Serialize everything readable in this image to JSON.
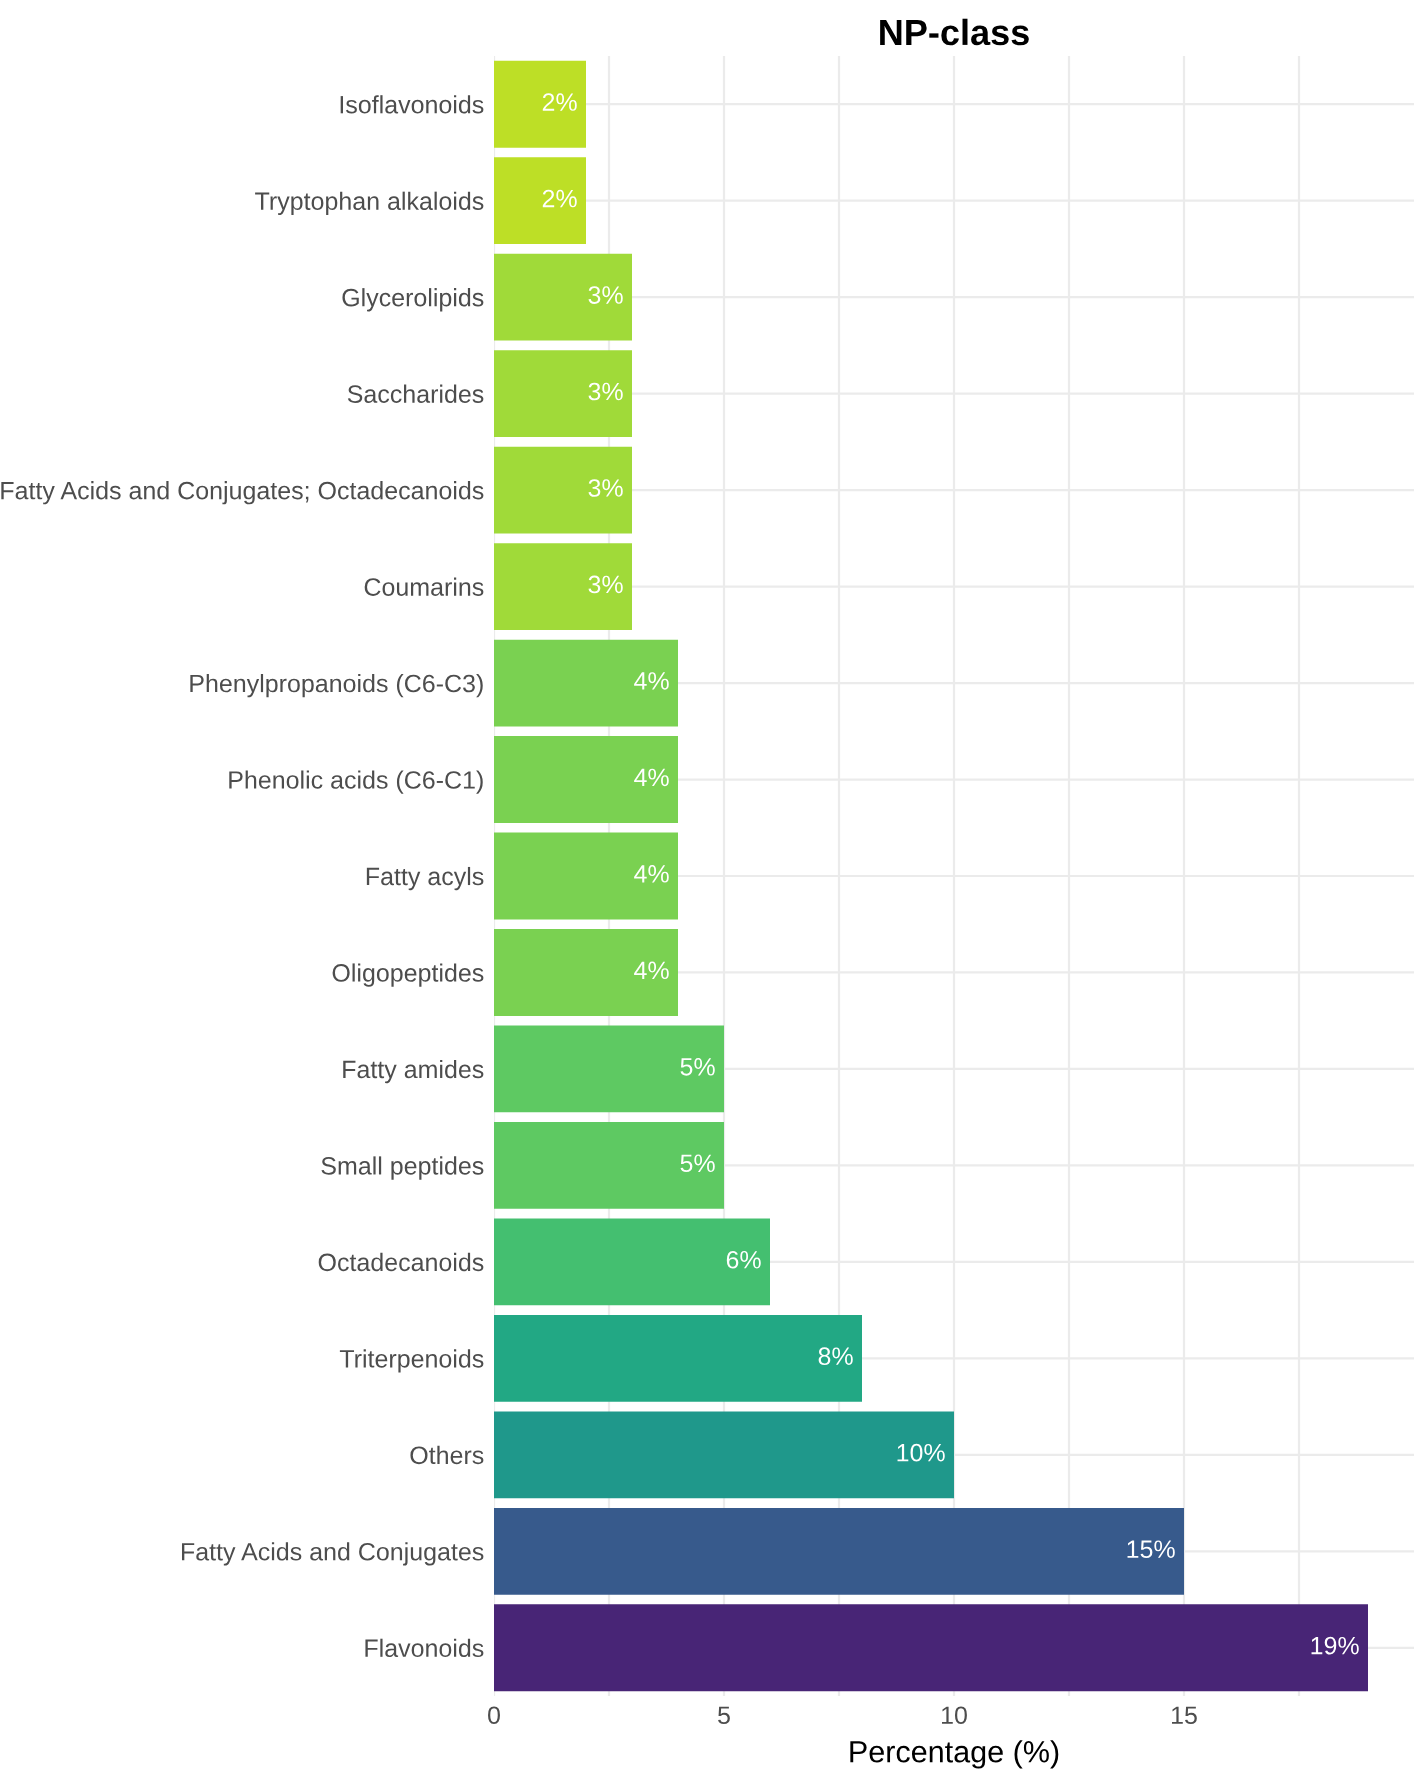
{
  "chart_data": {
    "type": "bar",
    "orientation": "horizontal",
    "title": "NP-class",
    "xlabel": "Percentage (%)",
    "categories": [
      "Isoflavonoids",
      "Tryptophan alkaloids",
      "Glycerolipids",
      "Saccharides",
      "Fatty Acids and Conjugates; Octadecanoids",
      "Coumarins",
      "Phenylpropanoids (C6-C3)",
      "Phenolic acids (C6-C1)",
      "Fatty acyls",
      "Oligopeptides",
      "Fatty amides",
      "Small peptides",
      "Octadecanoids",
      "Triterpenoids",
      "Others",
      "Fatty Acids and Conjugates",
      "Flavonoids"
    ],
    "values": [
      2,
      2,
      3,
      3,
      3,
      3,
      4,
      4,
      4,
      4,
      5,
      5,
      6,
      8,
      10,
      15,
      19
    ],
    "colors": [
      "#bddf26",
      "#bddf26",
      "#a0da39",
      "#a0da39",
      "#a0da39",
      "#a0da39",
      "#7ad151",
      "#7ad151",
      "#7ad151",
      "#7ad151",
      "#5ec962",
      "#5ec962",
      "#44bf70",
      "#22a884",
      "#1f988b",
      "#375a8c",
      "#482576"
    ],
    "value_labels": [
      "2%",
      "2%",
      "3%",
      "3%",
      "3%",
      "3%",
      "4%",
      "4%",
      "4%",
      "4%",
      "5%",
      "5%",
      "6%",
      "8%",
      "10%",
      "15%",
      "19%"
    ],
    "xlim": [
      0,
      20
    ],
    "xticks": [
      0,
      {
        "value": 2.5,
        "label": null
      },
      5,
      {
        "value": 7.5,
        "label": null
      },
      10,
      {
        "value": 12.5,
        "label": null
      },
      15,
      {
        "value": 17.5,
        "label": null
      }
    ],
    "grid": true
  }
}
